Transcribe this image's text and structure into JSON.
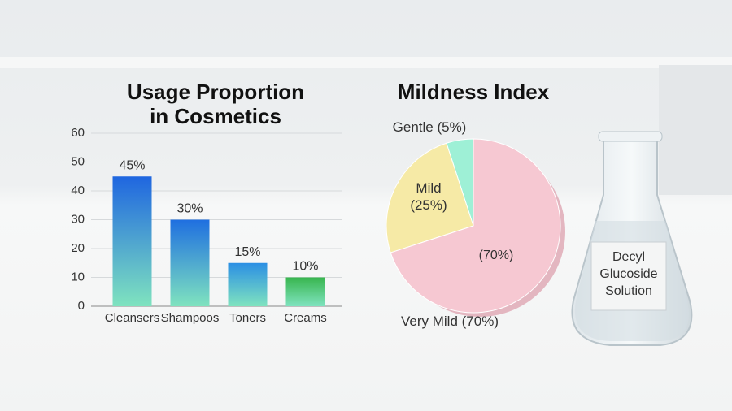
{
  "chart_data": [
    {
      "type": "bar",
      "title": "Usage Proportion in Cosmetics",
      "categories": [
        "Cleansers",
        "Shampoos",
        "Toners",
        "Creams"
      ],
      "values": [
        45,
        30,
        15,
        10
      ],
      "value_labels": [
        "45%",
        "30%",
        "15%",
        "10%"
      ],
      "colors": [
        "#1f66e0",
        "#1f6fe0",
        "#2b8fe4",
        "#38b54e"
      ],
      "ylim": [
        0,
        60
      ],
      "yticks": [
        0,
        10,
        20,
        30,
        40,
        50,
        60
      ],
      "grid": true
    },
    {
      "type": "pie",
      "title": "Mildness Index",
      "categories": [
        "Gentle (5%)",
        "Mild (25%)",
        "Very Mild (70%)"
      ],
      "values": [
        5,
        25,
        70
      ],
      "value_labels": [
        null,
        null,
        "(70%)"
      ],
      "colors": [
        "#9ef0d6",
        "#f6eaa6",
        "#f6c8d2"
      ]
    }
  ],
  "scene": {
    "flask_label": "Decyl Glucoside Solution"
  }
}
